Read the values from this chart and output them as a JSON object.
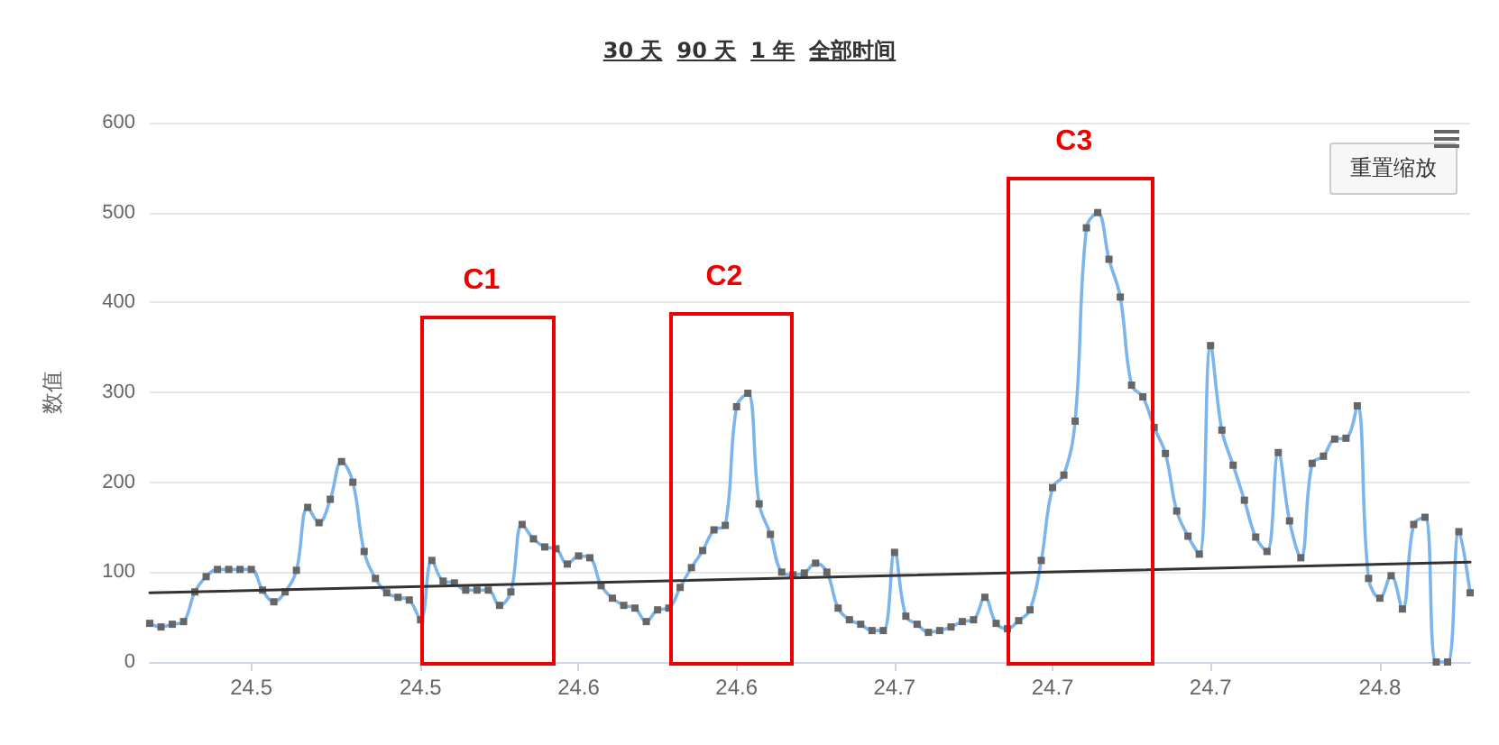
{
  "chart_data": {
    "type": "line",
    "ylabel": "数值",
    "categories": [
      null,
      null,
      null,
      null,
      null,
      null,
      null,
      null,
      null,
      "24.5",
      null,
      null,
      null,
      null,
      null,
      null,
      null,
      null,
      null,
      null,
      null,
      null,
      null,
      null,
      "24.5",
      null,
      null,
      null,
      null,
      null,
      null,
      null,
      null,
      null,
      null,
      null,
      null,
      null,
      "24.6",
      null,
      null,
      null,
      null,
      null,
      null,
      null,
      null,
      null,
      null,
      null,
      null,
      null,
      "24.6",
      null,
      null,
      null,
      null,
      null,
      null,
      null,
      null,
      null,
      null,
      null,
      null,
      null,
      "24.7",
      null,
      null,
      null,
      null,
      null,
      null,
      null,
      null,
      null,
      null,
      null,
      null,
      null,
      "24.7",
      null,
      null,
      null,
      null,
      null,
      null,
      null,
      null,
      null,
      null,
      null,
      null,
      null,
      "24.7",
      null,
      null,
      null,
      null,
      null,
      null,
      null,
      null,
      null,
      null,
      null,
      null,
      null,
      null,
      "24.8",
      null,
      null,
      null,
      null,
      null,
      null,
      null,
      null
    ],
    "series": [
      {
        "color": "#7cb5ec",
        "marker": "square",
        "values": [
          43,
          39,
          42,
          45,
          78,
          95,
          103,
          103,
          103,
          103,
          80,
          67,
          78,
          102,
          172,
          155,
          181,
          223,
          200,
          123,
          93,
          77,
          72,
          69,
          47,
          113,
          90,
          88,
          80,
          80,
          80,
          63,
          78,
          153,
          137,
          128,
          126,
          109,
          118,
          116,
          85,
          71,
          63,
          60,
          45,
          58,
          60,
          83,
          105,
          124,
          147,
          152,
          284,
          299,
          176,
          142,
          100,
          97,
          99,
          110,
          100,
          60,
          47,
          42,
          35,
          35,
          122,
          51,
          42,
          33,
          35,
          39,
          45,
          47,
          72,
          43,
          37,
          46,
          58,
          113,
          194,
          208,
          268,
          483,
          500,
          448,
          406,
          308,
          295,
          261,
          232,
          168,
          140,
          120,
          352,
          258,
          219,
          180,
          139,
          123,
          233,
          157,
          116,
          221,
          229,
          248,
          249,
          285,
          93,
          71,
          96,
          59,
          153,
          161,
          0,
          0,
          145,
          77
        ]
      },
      {
        "color": "#333333",
        "marker": "none",
        "values": [
          77,
          null,
          null,
          null,
          null,
          null,
          null,
          null,
          null,
          null,
          null,
          null,
          null,
          null,
          null,
          null,
          null,
          null,
          null,
          null,
          null,
          null,
          null,
          null,
          null,
          null,
          null,
          null,
          null,
          null,
          null,
          null,
          null,
          null,
          null,
          null,
          null,
          null,
          null,
          null,
          null,
          null,
          null,
          null,
          null,
          null,
          null,
          null,
          null,
          null,
          null,
          null,
          null,
          null,
          null,
          null,
          null,
          null,
          null,
          null,
          null,
          null,
          null,
          null,
          null,
          null,
          null,
          null,
          null,
          null,
          null,
          null,
          null,
          null,
          null,
          null,
          null,
          null,
          null,
          null,
          null,
          null,
          null,
          null,
          null,
          null,
          null,
          null,
          null,
          null,
          null,
          null,
          null,
          null,
          null,
          null,
          null,
          null,
          null,
          null,
          null,
          null,
          null,
          null,
          null,
          null,
          null,
          null,
          null,
          null,
          null,
          null,
          null,
          null,
          null,
          null,
          null,
          111
        ]
      }
    ],
    "ylim": [
      0,
      600
    ],
    "yticks": [
      0,
      100,
      200,
      300,
      400,
      500,
      600
    ],
    "grid": "y",
    "annotations": [
      "30 天",
      "90 天",
      "1 年",
      "全部时间",
      "重置缩放",
      "C1",
      "C2",
      "C3"
    ]
  }
}
